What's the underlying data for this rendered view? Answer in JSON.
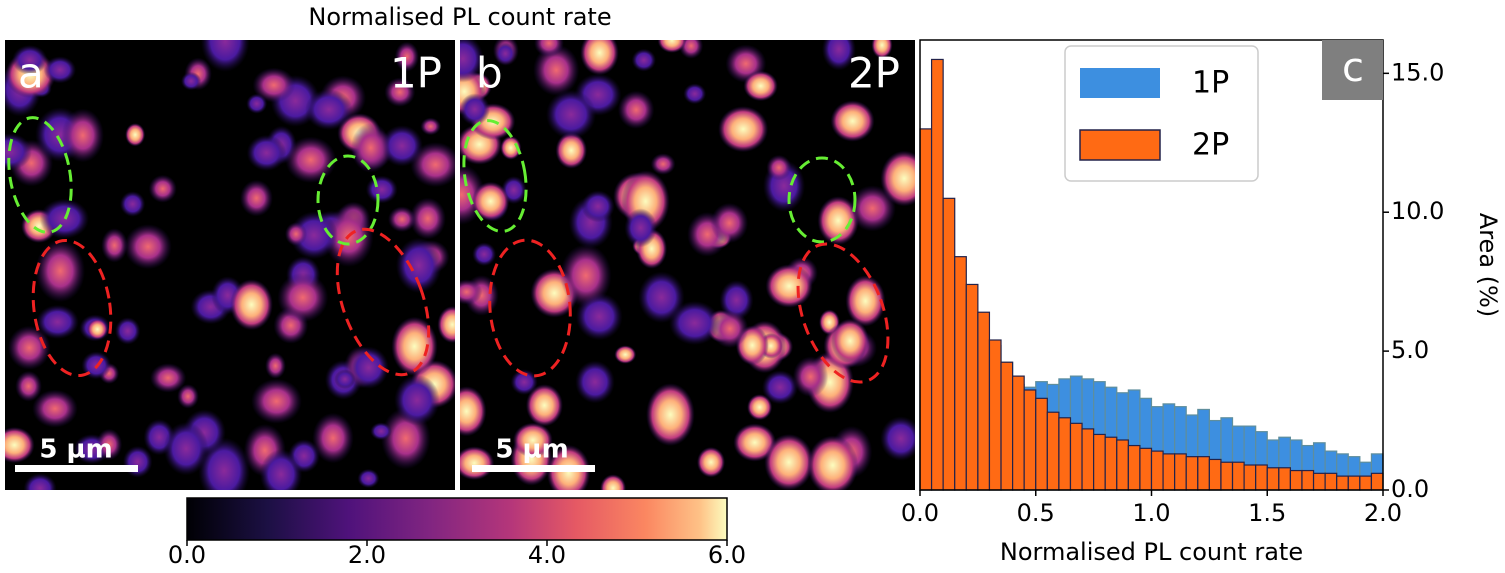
{
  "chart_data": [
    {
      "type": "image",
      "panel_label": "a",
      "label": "1P",
      "scale_bar": "5 µm",
      "title": "Normalised PL count rate"
    },
    {
      "type": "image",
      "panel_label": "b",
      "label": "2P",
      "scale_bar": "5 µm"
    },
    {
      "type": "colorbar",
      "xlim": [
        0,
        6
      ],
      "xticks": [
        {
          "value": 0,
          "label": "0.0"
        },
        {
          "value": 2,
          "label": "2.0"
        },
        {
          "value": 4,
          "label": "4.0"
        },
        {
          "value": 6,
          "label": "6.0"
        }
      ]
    },
    {
      "type": "histogram",
      "panel_label": "c",
      "xlabel": "Normalised PL count rate",
      "ylabel": "Area (%)",
      "bins": [
        0,
        0.05,
        0.1,
        0.15,
        0.2,
        0.25,
        0.3,
        0.35,
        0.4,
        0.45,
        0.5,
        0.55,
        0.6,
        0.65,
        0.7,
        0.75,
        0.8,
        0.85,
        0.9,
        0.95,
        1.0,
        1.05,
        1.1,
        1.15,
        1.2,
        1.25,
        1.3,
        1.35,
        1.4,
        1.45,
        1.5,
        1.55,
        1.6,
        1.65,
        1.7,
        1.75,
        1.8,
        1.85,
        1.9,
        1.95,
        2.0
      ],
      "series": [
        {
          "name": "1P",
          "color": "#3d8fe0",
          "edgecolor": "#5f8e9c",
          "values": [
            4.5,
            5.0,
            5.1,
            5.2,
            5.3,
            5.3,
            5.2,
            4.6,
            3.8,
            3.7,
            3.9,
            3.8,
            4.0,
            4.1,
            4.0,
            3.9,
            3.7,
            3.5,
            3.6,
            3.3,
            3.0,
            3.1,
            3.0,
            2.7,
            2.9,
            2.5,
            2.6,
            2.3,
            2.3,
            2.1,
            1.8,
            1.9,
            1.8,
            1.6,
            1.7,
            1.4,
            1.3,
            1.2,
            1.0,
            1.3
          ]
        },
        {
          "name": "2P",
          "color": "#ff6a14",
          "edgecolor": "#22224a",
          "values": [
            13.0,
            15.5,
            10.5,
            8.4,
            7.4,
            6.4,
            5.4,
            4.6,
            4.1,
            3.6,
            3.3,
            2.8,
            2.6,
            2.4,
            2.2,
            2.0,
            1.9,
            1.8,
            1.6,
            1.5,
            1.4,
            1.3,
            1.3,
            1.2,
            1.2,
            1.1,
            1.0,
            1.0,
            0.9,
            0.9,
            0.8,
            0.8,
            0.7,
            0.7,
            0.6,
            0.6,
            0.5,
            0.5,
            0.5,
            0.6
          ]
        }
      ],
      "xlim": [
        0,
        2
      ],
      "xticks": [
        {
          "value": 0,
          "label": "0.0"
        },
        {
          "value": 0.5,
          "label": "0.5"
        },
        {
          "value": 1,
          "label": "1.0"
        },
        {
          "value": 1.5,
          "label": "1.5"
        },
        {
          "value": 2,
          "label": "2.0"
        }
      ],
      "ylim": [
        0,
        16.2
      ],
      "yticks": [
        {
          "value": 0,
          "label": "0.0"
        },
        {
          "value": 5,
          "label": "5.0"
        },
        {
          "value": 10,
          "label": "10.0"
        },
        {
          "value": 15,
          "label": "15.0"
        }
      ],
      "legend": "upper right"
    }
  ]
}
